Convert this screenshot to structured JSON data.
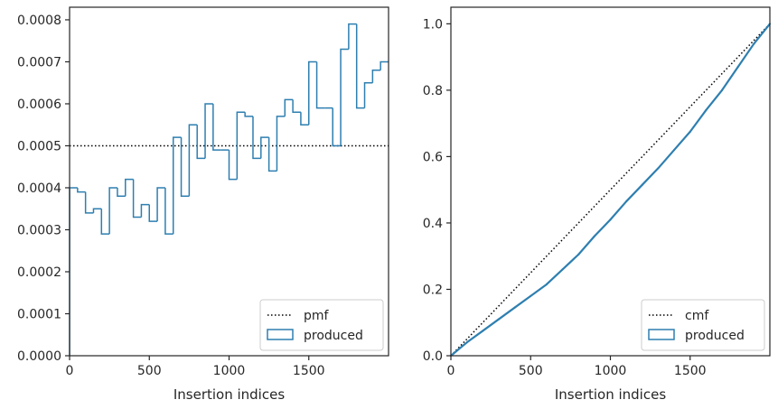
{
  "chart_data": [
    {
      "type": "step",
      "xlabel": "Insertion indices",
      "ylabel": "",
      "xlim": [
        0,
        2000
      ],
      "ylim": [
        0,
        0.00083
      ],
      "xticks": [
        0,
        500,
        1000,
        1500
      ],
      "xtick_labels": [
        "0",
        "500",
        "1000",
        "1500"
      ],
      "yticks": [
        0,
        0.0001,
        0.0002,
        0.0003,
        0.0004,
        0.0005,
        0.0006,
        0.0007,
        0.0008
      ],
      "ytick_labels": [
        "0.0000",
        "0.0001",
        "0.0002",
        "0.0003",
        "0.0004",
        "0.0005",
        "0.0006",
        "0.0007",
        "0.0008"
      ],
      "grid": false,
      "legend_position": "bottom-right",
      "reference": {
        "name": "pmf",
        "style": "dotted",
        "color": "#000000",
        "value": 0.0005
      },
      "series": [
        {
          "name": "produced",
          "color": "#2e7fb0",
          "bin_width": 50,
          "values": [
            0.0004,
            0.00039,
            0.00034,
            0.00035,
            0.00029,
            0.0004,
            0.00038,
            0.00042,
            0.00033,
            0.00036,
            0.00032,
            0.0004,
            0.00029,
            0.00052,
            0.00038,
            0.00055,
            0.00047,
            0.0006,
            0.00049,
            0.00049,
            0.00042,
            0.00058,
            0.00057,
            0.00047,
            0.00052,
            0.00044,
            0.00057,
            0.00061,
            0.00058,
            0.00055,
            0.0007,
            0.00059,
            0.00059,
            0.0005,
            0.00073,
            0.00079,
            0.00059,
            0.00065,
            0.00068,
            0.0007
          ]
        }
      ]
    },
    {
      "type": "line",
      "xlabel": "Insertion indices",
      "ylabel": "",
      "xlim": [
        0,
        2000
      ],
      "ylim": [
        0,
        1.05
      ],
      "xticks": [
        0,
        500,
        1000,
        1500
      ],
      "xtick_labels": [
        "0",
        "500",
        "1000",
        "1500"
      ],
      "yticks": [
        0,
        0.2,
        0.4,
        0.6,
        0.8,
        1.0
      ],
      "ytick_labels": [
        "0.0",
        "0.2",
        "0.4",
        "0.6",
        "0.8",
        "1.0"
      ],
      "grid": false,
      "legend_position": "bottom-right",
      "reference": {
        "name": "cmf",
        "style": "dotted",
        "color": "#000000",
        "x": [
          0,
          2000
        ],
        "y": [
          0,
          1.0
        ]
      },
      "series": [
        {
          "name": "produced",
          "color": "#2e7fb0",
          "x": [
            0,
            100,
            200,
            300,
            400,
            500,
            600,
            700,
            800,
            900,
            1000,
            1100,
            1200,
            1300,
            1400,
            1500,
            1600,
            1700,
            1800,
            1900,
            2000
          ],
          "y": [
            0,
            0.04,
            0.075,
            0.11,
            0.145,
            0.18,
            0.215,
            0.26,
            0.305,
            0.36,
            0.41,
            0.465,
            0.515,
            0.565,
            0.62,
            0.675,
            0.74,
            0.8,
            0.87,
            0.94,
            1.0
          ]
        }
      ]
    }
  ]
}
